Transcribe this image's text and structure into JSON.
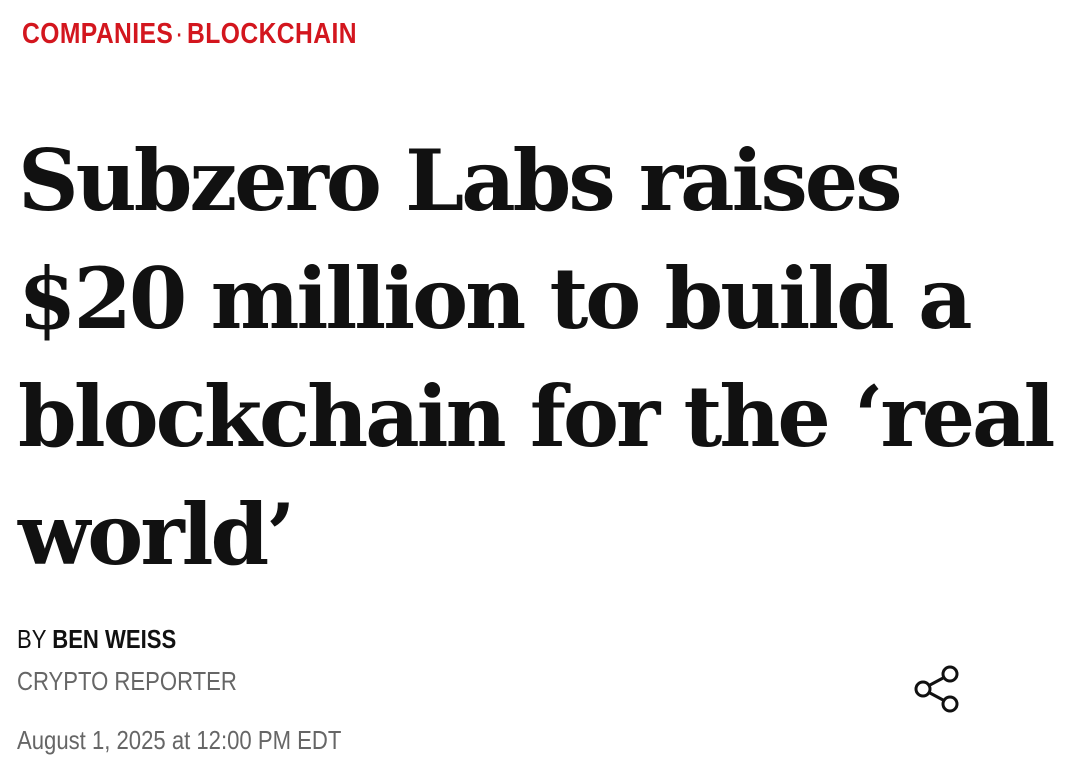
{
  "breadcrumb": {
    "section": "COMPANIES",
    "separator": "·",
    "topic": "BLOCKCHAIN"
  },
  "headline": "Subzero Labs raises $20 million to build a blockchain for the ‘real world’",
  "byline": {
    "prefix": "BY",
    "author": "BEN WEISS",
    "role": "CRYPTO REPORTER",
    "date": "August 1, 2025 at 12:00 PM EDT"
  }
}
